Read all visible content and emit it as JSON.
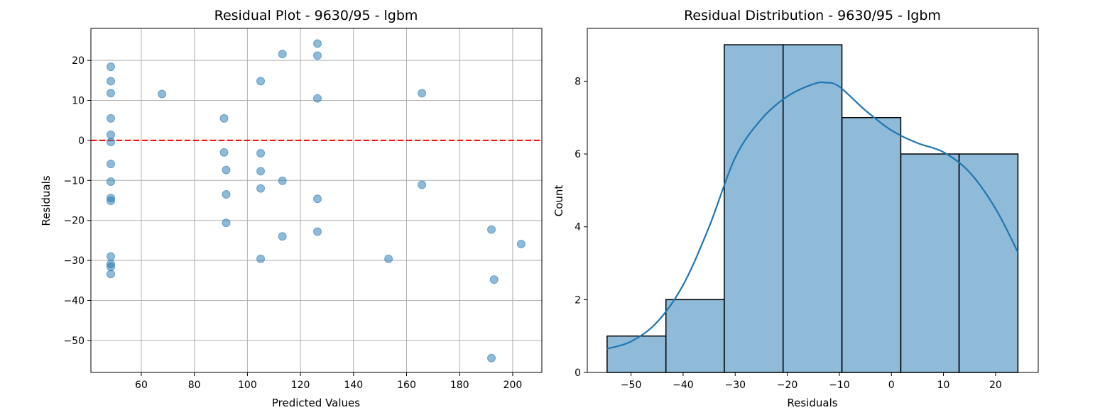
{
  "chart_data": [
    {
      "type": "scatter",
      "title": "Residual Plot - 9630/95 - lgbm",
      "xlabel": "Predicted Values",
      "ylabel": "Residuals",
      "xlim": [
        41,
        211
      ],
      "ylim": [
        -58,
        28
      ],
      "xticks": [
        60,
        80,
        100,
        120,
        140,
        160,
        180,
        200
      ],
      "yticks": [
        -50,
        -40,
        -30,
        -20,
        -10,
        0,
        10,
        20
      ],
      "grid": true,
      "reference_line": {
        "y": 0,
        "color": "#ff0000",
        "style": "dashed"
      },
      "point_color": "#1f77b4",
      "points": [
        {
          "x": 48.5,
          "y": 18.4
        },
        {
          "x": 48.5,
          "y": 14.8
        },
        {
          "x": 48.5,
          "y": 11.8
        },
        {
          "x": 48.5,
          "y": 5.5
        },
        {
          "x": 48.5,
          "y": 1.4
        },
        {
          "x": 48.5,
          "y": -0.4
        },
        {
          "x": 48.5,
          "y": -5.9
        },
        {
          "x": 48.5,
          "y": -10.3
        },
        {
          "x": 48.5,
          "y": -14.4
        },
        {
          "x": 48.5,
          "y": -15.1
        },
        {
          "x": 48.5,
          "y": -29.0
        },
        {
          "x": 48.5,
          "y": -30.9
        },
        {
          "x": 48.5,
          "y": -31.6
        },
        {
          "x": 48.5,
          "y": -33.4
        },
        {
          "x": 67.8,
          "y": 11.6
        },
        {
          "x": 91.2,
          "y": 5.5
        },
        {
          "x": 91.2,
          "y": -3.0
        },
        {
          "x": 92.0,
          "y": -7.4
        },
        {
          "x": 92.0,
          "y": -13.5
        },
        {
          "x": 92.0,
          "y": -20.6
        },
        {
          "x": 105.0,
          "y": 14.8
        },
        {
          "x": 105.0,
          "y": -3.2
        },
        {
          "x": 105.0,
          "y": -7.7
        },
        {
          "x": 105.0,
          "y": -12.0
        },
        {
          "x": 105.0,
          "y": -29.6
        },
        {
          "x": 113.2,
          "y": 21.6
        },
        {
          "x": 113.2,
          "y": -10.1
        },
        {
          "x": 113.2,
          "y": -24.0
        },
        {
          "x": 126.4,
          "y": 24.2
        },
        {
          "x": 126.4,
          "y": 21.2
        },
        {
          "x": 126.4,
          "y": 10.5
        },
        {
          "x": 126.4,
          "y": -14.6
        },
        {
          "x": 126.4,
          "y": -22.8
        },
        {
          "x": 153.2,
          "y": -29.6
        },
        {
          "x": 165.8,
          "y": 11.8
        },
        {
          "x": 165.8,
          "y": -11.1
        },
        {
          "x": 192.0,
          "y": -22.3
        },
        {
          "x": 192.0,
          "y": -54.4
        },
        {
          "x": 193.0,
          "y": -34.8
        },
        {
          "x": 203.2,
          "y": -25.9
        }
      ]
    },
    {
      "type": "histogram",
      "title": "Residual Distribution - 9630/95 - lgbm",
      "xlabel": "Residuals",
      "ylabel": "Count",
      "xlim": [
        -58.4,
        28.2
      ],
      "ylim": [
        0,
        9.45
      ],
      "xticks": [
        -50,
        -40,
        -30,
        -20,
        -10,
        0,
        10,
        20
      ],
      "yticks": [
        0,
        2,
        4,
        6,
        8
      ],
      "grid": false,
      "bar_color": "#1f77b4",
      "bins": [
        {
          "start": -54.6,
          "end": -43.3,
          "count": 1
        },
        {
          "start": -43.3,
          "end": -32.1,
          "count": 2
        },
        {
          "start": -32.1,
          "end": -20.8,
          "count": 9
        },
        {
          "start": -20.8,
          "end": -9.5,
          "count": 9
        },
        {
          "start": -9.5,
          "end": 1.8,
          "count": 7
        },
        {
          "start": 1.8,
          "end": 13.0,
          "count": 6
        },
        {
          "start": 13.0,
          "end": 24.3,
          "count": 6
        }
      ],
      "kde": [
        {
          "x": -54.6,
          "y": 0.65
        },
        {
          "x": -50,
          "y": 0.85
        },
        {
          "x": -45,
          "y": 1.38
        },
        {
          "x": -40,
          "y": 2.4
        },
        {
          "x": -35,
          "y": 4.0
        },
        {
          "x": -30,
          "y": 5.9
        },
        {
          "x": -25,
          "y": 6.95
        },
        {
          "x": -20,
          "y": 7.58
        },
        {
          "x": -15,
          "y": 7.92
        },
        {
          "x": -12.5,
          "y": 7.96
        },
        {
          "x": -10,
          "y": 7.85
        },
        {
          "x": -5,
          "y": 7.2
        },
        {
          "x": 0,
          "y": 6.65
        },
        {
          "x": 5,
          "y": 6.3
        },
        {
          "x": 10,
          "y": 6.05
        },
        {
          "x": 15,
          "y": 5.5
        },
        {
          "x": 20,
          "y": 4.5
        },
        {
          "x": 24.3,
          "y": 3.3
        }
      ]
    }
  ]
}
